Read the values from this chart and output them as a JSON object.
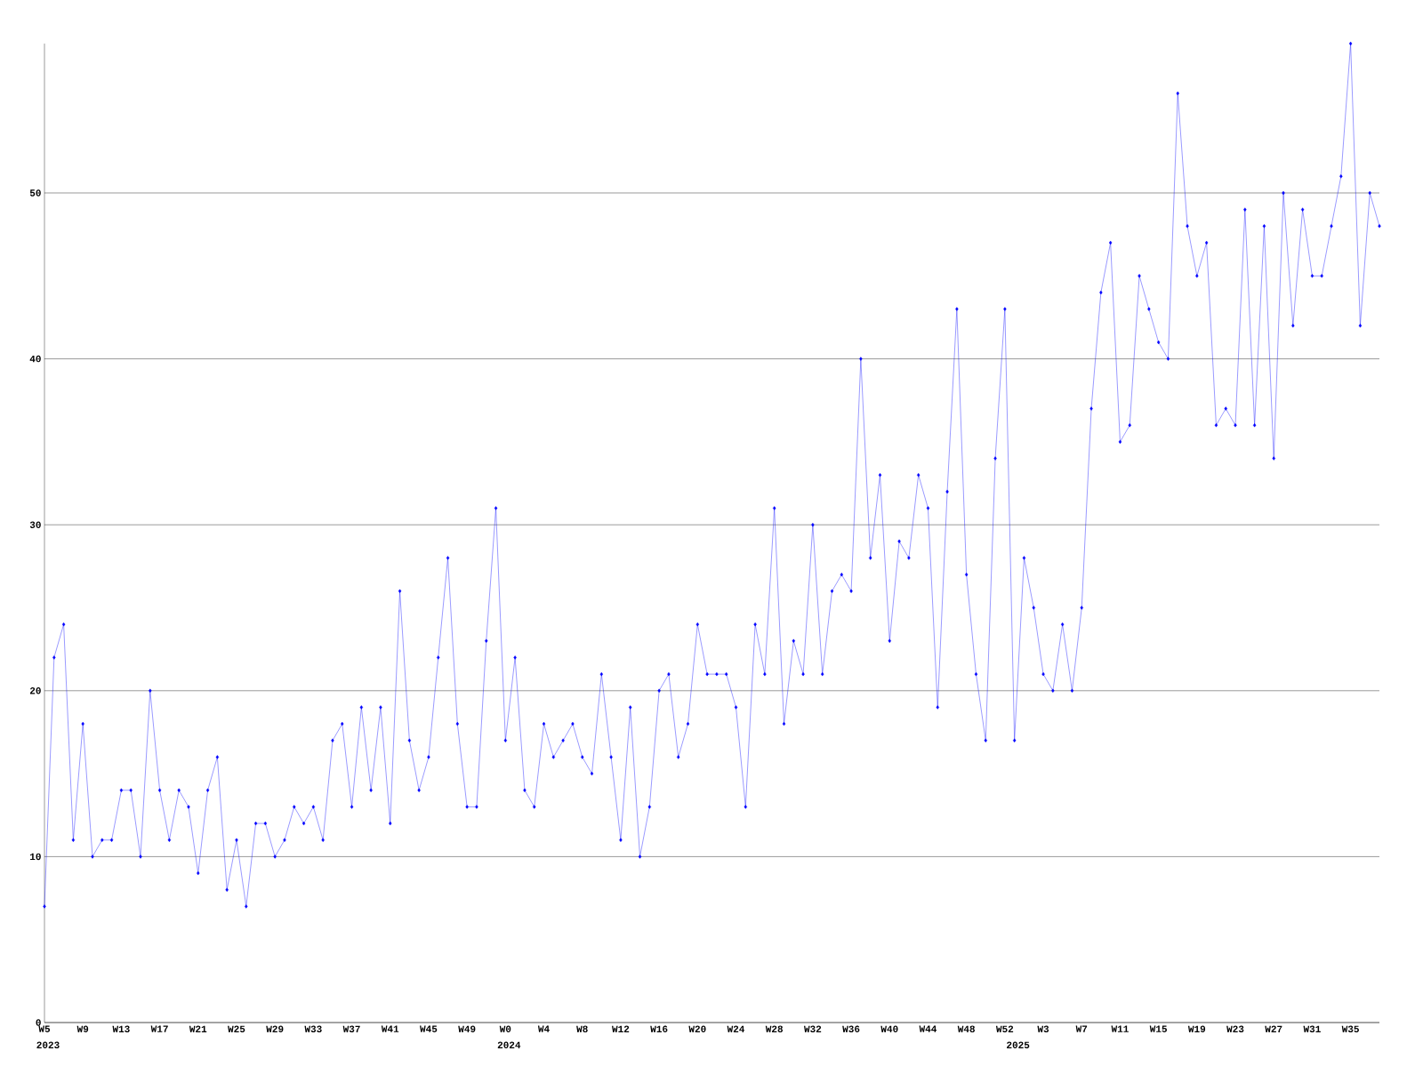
{
  "chart_data": {
    "type": "line",
    "categories": [
      "W5",
      null,
      null,
      null,
      "W9",
      null,
      null,
      null,
      "W13",
      null,
      null,
      null,
      "W17",
      null,
      null,
      null,
      "W21",
      null,
      null,
      null,
      "W25",
      null,
      null,
      null,
      "W29",
      null,
      null,
      null,
      "W33",
      null,
      null,
      null,
      "W37",
      null,
      null,
      null,
      "W41",
      null,
      null,
      null,
      "W45",
      null,
      null,
      null,
      "W49",
      null,
      null,
      null,
      "W0",
      null,
      null,
      null,
      "W4",
      null,
      null,
      null,
      "W8",
      null,
      null,
      null,
      "W12",
      null,
      null,
      null,
      "W16",
      null,
      null,
      null,
      "W20",
      null,
      null,
      null,
      "W24",
      null,
      null,
      null,
      "W28",
      null,
      null,
      null,
      "W32",
      null,
      null,
      null,
      "W36",
      null,
      null,
      null,
      "W40",
      null,
      null,
      null,
      "W44",
      null,
      null,
      null,
      "W48",
      null,
      null,
      null,
      "W52",
      null,
      null,
      null,
      "W3",
      null,
      null,
      null,
      "W7",
      null,
      null,
      null,
      "W11",
      null,
      null,
      null,
      "W15",
      null,
      null,
      null,
      "W19",
      null,
      null,
      null,
      "W23",
      null,
      null,
      null,
      "W27",
      null,
      null,
      null,
      "W31",
      null,
      null,
      null,
      "W35",
      null,
      null,
      null
    ],
    "series": [
      {
        "color": "#0000ff",
        "values": [
          7,
          22,
          24,
          11,
          18,
          10,
          11,
          11,
          14,
          14,
          10,
          20,
          14,
          11,
          14,
          13,
          9,
          14,
          16,
          8,
          11,
          7,
          12,
          12,
          10,
          11,
          13,
          12,
          13,
          11,
          17,
          18,
          13,
          19,
          14,
          19,
          12,
          26,
          17,
          14,
          16,
          22,
          28,
          18,
          13,
          13,
          23,
          31,
          17,
          22,
          14,
          13,
          18,
          16,
          17,
          18,
          16,
          15,
          21,
          16,
          11,
          19,
          10,
          13,
          20,
          21,
          16,
          18,
          24,
          21,
          21,
          21,
          19,
          13,
          24,
          21,
          31,
          18,
          23,
          21,
          30,
          21,
          26,
          27,
          26,
          40,
          28,
          33,
          23,
          29,
          28,
          33,
          31,
          19,
          32,
          43,
          27,
          21,
          17,
          34,
          43,
          17,
          28,
          25,
          21,
          20,
          24,
          20,
          25,
          37,
          44,
          47,
          35,
          36,
          45,
          43,
          41,
          40,
          56,
          48,
          45,
          47,
          36,
          37,
          36,
          49,
          36,
          48,
          34,
          50,
          42,
          49,
          45,
          45,
          48,
          51,
          59,
          42,
          50,
          48
        ]
      }
    ],
    "ylim": [
      0,
      59
    ],
    "yticks": [
      0,
      10,
      20,
      30,
      40,
      50
    ],
    "grid": "y",
    "marker": "diamond",
    "annotations": [
      "2023",
      "2024",
      "2025"
    ]
  }
}
